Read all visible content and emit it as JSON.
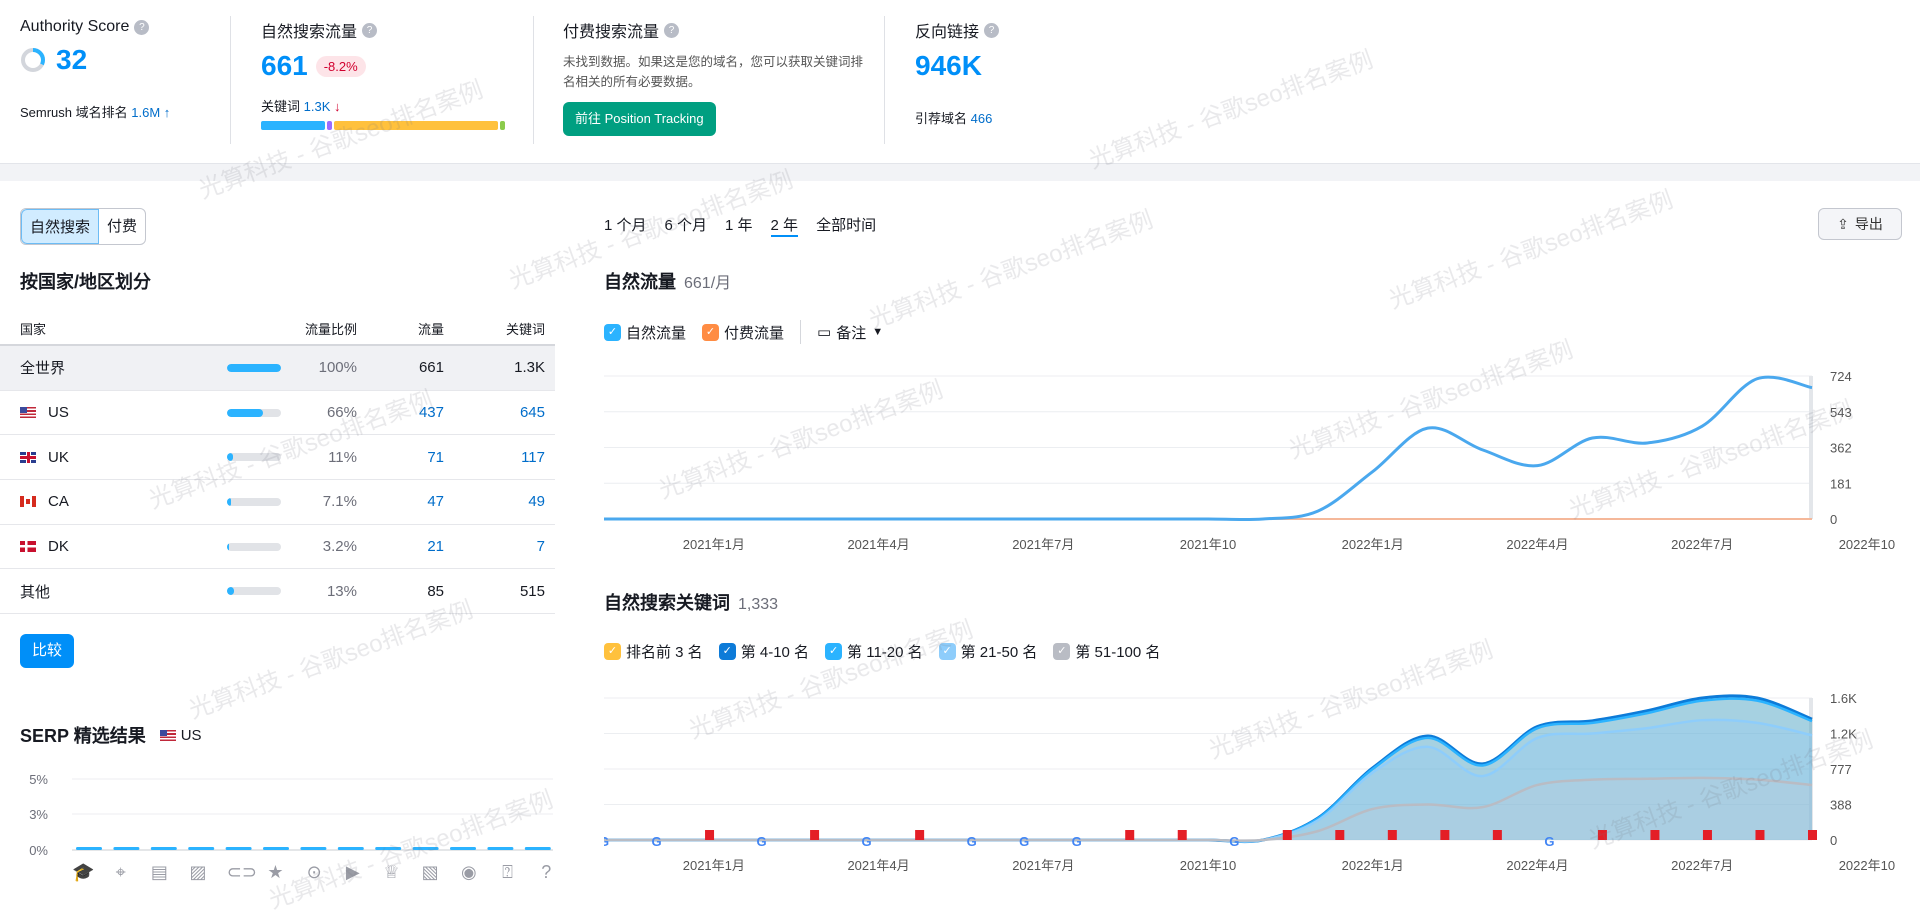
{
  "colors": {
    "accent": "#008ff8",
    "organic": "#4aa8ee",
    "paid": "#ff8c43",
    "green_button": "#009f81",
    "negative": "#d1002f"
  },
  "watermark": "光算科技 - 谷歌seo排名案例",
  "metrics": {
    "authority": {
      "title": "Authority Score",
      "value": "32",
      "score_fraction": 0.32,
      "rank_label": "Semrush 域名排名",
      "rank_value": "1.6M",
      "rank_trend": "↑"
    },
    "organic": {
      "title": "自然搜索流量",
      "value": "661",
      "change": "-8.2%",
      "kw_label": "关键词",
      "kw_value": "1.3K",
      "kw_trend": "↓",
      "distribution": [
        {
          "color": "#2bb3ff",
          "share": 27
        },
        {
          "color": "#9b6bff",
          "share": 2
        },
        {
          "color": "#ffc13d",
          "share": 69
        },
        {
          "color": "#8bcb4c",
          "share": 2
        }
      ]
    },
    "paid": {
      "title": "付费搜索流量",
      "message": "未找到数据。如果这是您的域名，您可以获取关键词排名相关的所有必要数据。",
      "button": "前往 Position Tracking"
    },
    "backlinks": {
      "title": "反向链接",
      "value": "946K",
      "ref_label": "引荐域名",
      "ref_value": "466"
    }
  },
  "left": {
    "toggle": [
      "自然搜索",
      "付费"
    ],
    "country_title": "按国家/地区划分",
    "headers": [
      "国家",
      "流量比例",
      "流量",
      "关键词"
    ],
    "rows": [
      {
        "name": "全世界",
        "flag": "",
        "share": 100,
        "pct": "100%",
        "traffic": "661",
        "keywords": "1.3K"
      },
      {
        "name": "US",
        "flag": "us",
        "share": 66,
        "pct": "66%",
        "traffic": "437",
        "keywords": "645"
      },
      {
        "name": "UK",
        "flag": "uk",
        "share": 11,
        "pct": "11%",
        "traffic": "71",
        "keywords": "117"
      },
      {
        "name": "CA",
        "flag": "ca",
        "share": 7.1,
        "pct": "7.1%",
        "traffic": "47",
        "keywords": "49"
      },
      {
        "name": "DK",
        "flag": "dk",
        "share": 3.2,
        "pct": "3.2%",
        "traffic": "21",
        "keywords": "7"
      },
      {
        "name": "其他",
        "flag": "",
        "share": 13,
        "pct": "13%",
        "traffic": "85",
        "keywords": "515"
      }
    ],
    "compare_button": "比较",
    "serp_title": "SERP 精选结果",
    "serp_country": "US",
    "serp_icons": [
      "graduation-cap",
      "location-pin",
      "article",
      "image",
      "link",
      "star",
      "video",
      "video-box",
      "crown",
      "image-pack",
      "play",
      "faq",
      "question"
    ]
  },
  "right": {
    "time_tabs": [
      "1 个月",
      "6 个月",
      "1 年",
      "2 年",
      "全部时间"
    ],
    "active_tab": "2 年",
    "export": "导出",
    "traffic_title": "自然流量",
    "traffic_sub": "661/月",
    "traffic_legend": [
      "自然流量",
      "付费流量"
    ],
    "notes": "备注",
    "kw_title": "自然搜索关键词",
    "kw_sub": "1,333",
    "kw_legend": [
      {
        "label": "排名前 3 名",
        "color": "#ffc13d"
      },
      {
        "label": "第 4-10 名",
        "color": "#0d7bd8"
      },
      {
        "label": "第 11-20 名",
        "color": "#2bb3ff"
      },
      {
        "label": "第 21-50 名",
        "color": "#8ecdfb"
      },
      {
        "label": "第 51-100 名",
        "color": "#b9bcc4"
      }
    ]
  },
  "chart_data": [
    {
      "type": "line",
      "title": "自然流量",
      "x": [
        "2020-11",
        "2020-12",
        "2021-01",
        "2021-02",
        "2021-03",
        "2021-04",
        "2021-05",
        "2021-06",
        "2021-07",
        "2021-08",
        "2021-09",
        "2021-10",
        "2021-11",
        "2021-12",
        "2022-01",
        "2022-02",
        "2022-03",
        "2022-04",
        "2022-05",
        "2022-06",
        "2022-07",
        "2022-08",
        "2022-09"
      ],
      "xticks": [
        "2021年1月",
        "2021年4月",
        "2021年7月",
        "2021年10",
        "2022年1月",
        "2022年4月",
        "2022年7月",
        "2022年10"
      ],
      "yticks": [
        0,
        181,
        362,
        543,
        724
      ],
      "ylim": [
        0,
        724
      ],
      "grid": true,
      "series": [
        {
          "name": "自然流量",
          "color": "#4aa8ee",
          "values": [
            0,
            0,
            0,
            0,
            0,
            0,
            0,
            0,
            0,
            0,
            0,
            0,
            0,
            40,
            240,
            460,
            350,
            270,
            410,
            385,
            470,
            710,
            665
          ]
        },
        {
          "name": "付费流量",
          "color": "#f5b89a",
          "values": [
            0,
            0,
            0,
            0,
            0,
            0,
            0,
            0,
            0,
            0,
            0,
            0,
            0,
            0,
            0,
            0,
            0,
            0,
            0,
            0,
            0,
            0,
            0
          ]
        }
      ]
    },
    {
      "type": "area",
      "title": "自然搜索关键词",
      "stacked": true,
      "x": [
        "2020-11",
        "2020-12",
        "2021-01",
        "2021-02",
        "2021-03",
        "2021-04",
        "2021-05",
        "2021-06",
        "2021-07",
        "2021-08",
        "2021-09",
        "2021-10",
        "2021-11",
        "2021-12",
        "2022-01",
        "2022-02",
        "2022-03",
        "2022-04",
        "2022-05",
        "2022-06",
        "2022-07",
        "2022-08",
        "2022-09"
      ],
      "xticks": [
        "2021年1月",
        "2021年4月",
        "2021年7月",
        "2021年10",
        "2022年1月",
        "2022年4月",
        "2022年7月",
        "2022年10"
      ],
      "ytick_labels": [
        "0",
        "388",
        "777",
        "1.2K",
        "1.6K"
      ],
      "ylim": [
        0,
        1600
      ],
      "grid": true,
      "series": [
        {
          "name": "第 51-100 名",
          "color": "#b9bcc4",
          "values": [
            0,
            0,
            0,
            0,
            0,
            0,
            0,
            0,
            0,
            0,
            0,
            0,
            0,
            100,
            350,
            400,
            370,
            620,
            680,
            690,
            700,
            680,
            620
          ]
        },
        {
          "name": "第 21-50 名",
          "color": "#8ecdfb",
          "values": [
            0,
            0,
            0,
            0,
            0,
            0,
            0,
            0,
            0,
            0,
            0,
            0,
            0,
            120,
            410,
            650,
            350,
            530,
            520,
            570,
            650,
            640,
            560
          ]
        },
        {
          "name": "第 11-20 名",
          "color": "#2bb3ff",
          "values": [
            0,
            0,
            0,
            0,
            0,
            0,
            0,
            0,
            0,
            0,
            0,
            0,
            0,
            20,
            40,
            100,
            120,
            110,
            120,
            170,
            220,
            250,
            160
          ]
        },
        {
          "name": "第 4-10 名",
          "color": "#0d7bd8",
          "values": [
            0,
            0,
            0,
            0,
            0,
            0,
            0,
            0,
            0,
            0,
            0,
            0,
            0,
            6,
            13,
            22,
            18,
            18,
            23,
            26,
            30,
            30,
            22
          ]
        },
        {
          "name": "排名前 3 名",
          "color": "#ffc13d",
          "values": [
            0,
            0,
            0,
            0,
            0,
            0,
            0,
            0,
            0,
            0,
            0,
            0,
            0,
            0,
            0,
            0,
            0,
            0,
            0,
            0,
            0,
            0,
            0
          ]
        }
      ],
      "markers": [
        "google",
        "google",
        "flag",
        "google",
        "flag",
        "google",
        "flag",
        "google",
        "google",
        "google",
        "flag",
        "flag",
        "google",
        "flag",
        "flag",
        "flag",
        "flag",
        "flag",
        "google",
        "flag",
        "flag",
        "flag",
        "flag",
        "flag"
      ]
    },
    {
      "type": "bar",
      "title": "SERP 精选结果",
      "yticks": [
        "0%",
        "3%",
        "5%"
      ],
      "ylim": [
        0,
        5
      ],
      "values": [
        0,
        0,
        0,
        0,
        0,
        0,
        0,
        0,
        0,
        0,
        0,
        0,
        0
      ]
    }
  ]
}
